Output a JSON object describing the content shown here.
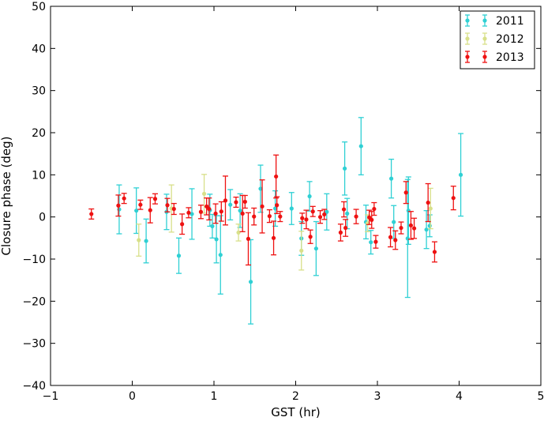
{
  "chart_data": {
    "type": "scatter",
    "xlabel": "GST (hr)",
    "ylabel": "Closure phase (deg)",
    "xlim": [
      -1,
      5
    ],
    "ylim": [
      -40,
      50
    ],
    "xticks": [
      "−1",
      "0",
      "1",
      "2",
      "3",
      "4",
      "5"
    ],
    "yticks": [
      "−40",
      "−30",
      "−20",
      "−10",
      "0",
      "10",
      "20",
      "30",
      "40",
      "50"
    ],
    "legend_position": "top-right",
    "error_bars": true,
    "series": [
      {
        "name": "2011",
        "color": "#2fd0d4",
        "points": [
          [
            -0.16,
            1.8,
            5.8
          ],
          [
            0.05,
            1.5,
            5.4
          ],
          [
            0.17,
            -5.7,
            5.2
          ],
          [
            0.42,
            1.2,
            4.2
          ],
          [
            0.57,
            -9.2,
            4.2
          ],
          [
            0.73,
            0.7,
            6.0
          ],
          [
            0.95,
            1.6,
            3.8
          ],
          [
            0.98,
            -2.2,
            2.8
          ],
          [
            1.03,
            -5.3,
            5.6
          ],
          [
            1.08,
            -9.0,
            9.3
          ],
          [
            1.2,
            2.9,
            3.6
          ],
          [
            1.32,
            1.5,
            4.0
          ],
          [
            1.45,
            -15.4,
            10.0
          ],
          [
            1.57,
            6.7,
            5.6
          ],
          [
            1.75,
            2.0,
            4.2
          ],
          [
            1.95,
            2.0,
            3.8
          ],
          [
            2.07,
            -5.1,
            4.0
          ],
          [
            2.17,
            4.9,
            3.5
          ],
          [
            2.25,
            -7.5,
            6.4
          ],
          [
            2.38,
            1.2,
            4.3
          ],
          [
            2.6,
            11.5,
            6.3
          ],
          [
            2.63,
            0.8,
            3.6
          ],
          [
            2.8,
            16.8,
            6.8
          ],
          [
            2.86,
            -1.2,
            4.0
          ],
          [
            2.92,
            -6.0,
            2.8
          ],
          [
            3.17,
            9.1,
            4.6
          ],
          [
            3.2,
            -1.2,
            3.9
          ],
          [
            3.37,
            -5.1,
            14.0
          ],
          [
            3.38,
            1.5,
            8.0
          ],
          [
            3.6,
            -3.0,
            4.5
          ],
          [
            3.64,
            -2.1,
            2.6
          ],
          [
            4.02,
            10.0,
            9.8
          ]
        ]
      },
      {
        "name": "2012",
        "color": "#d8e08a",
        "points": [
          [
            0.08,
            -5.5,
            3.8
          ],
          [
            0.48,
            2.0,
            5.6
          ],
          [
            0.88,
            5.5,
            4.6
          ],
          [
            1.3,
            -3.7,
            2.0
          ],
          [
            2.07,
            -8.0,
            4.6
          ],
          [
            2.88,
            -1.5,
            2.0
          ],
          [
            3.65,
            2.0,
            4.8
          ]
        ]
      },
      {
        "name": "2013",
        "color": "#ee1111",
        "points": [
          [
            -0.5,
            0.7,
            1.2
          ],
          [
            -0.17,
            2.7,
            2.5
          ],
          [
            -0.1,
            4.4,
            1.2
          ],
          [
            0.1,
            2.9,
            1.1
          ],
          [
            0.22,
            1.6,
            3.0
          ],
          [
            0.28,
            4.3,
            1.2
          ],
          [
            0.43,
            2.8,
            1.6
          ],
          [
            0.51,
            1.9,
            1.3
          ],
          [
            0.61,
            -1.7,
            2.4
          ],
          [
            0.69,
            1.0,
            1.2
          ],
          [
            0.84,
            1.2,
            1.6
          ],
          [
            0.91,
            2.5,
            2.0
          ],
          [
            0.94,
            1.9,
            2.6
          ],
          [
            1.02,
            0.8,
            2.3
          ],
          [
            1.09,
            1.3,
            2.3
          ],
          [
            1.14,
            3.9,
            5.8
          ],
          [
            1.27,
            3.5,
            1.2
          ],
          [
            1.35,
            0.8,
            4.3
          ],
          [
            1.38,
            3.6,
            1.5
          ],
          [
            1.42,
            -5.2,
            6.2
          ],
          [
            1.49,
            0.1,
            2.0
          ],
          [
            1.59,
            2.5,
            6.3
          ],
          [
            1.68,
            0.2,
            1.5
          ],
          [
            1.73,
            -5.0,
            4.0
          ],
          [
            1.76,
            9.6,
            5.1
          ],
          [
            1.77,
            2.8,
            2.0
          ],
          [
            1.81,
            0.1,
            1.2
          ],
          [
            2.08,
            -0.3,
            1.2
          ],
          [
            2.13,
            -0.6,
            2.2
          ],
          [
            2.18,
            -4.7,
            1.6
          ],
          [
            2.21,
            1.3,
            1.2
          ],
          [
            2.3,
            0.0,
            1.5
          ],
          [
            2.35,
            0.6,
            1.2
          ],
          [
            2.55,
            -3.7,
            2.0
          ],
          [
            2.59,
            1.8,
            1.8
          ],
          [
            2.61,
            -2.6,
            2.0
          ],
          [
            2.74,
            0.1,
            1.7
          ],
          [
            2.9,
            -0.1,
            1.7
          ],
          [
            2.93,
            -0.7,
            2.0
          ],
          [
            2.96,
            1.9,
            1.5
          ],
          [
            2.98,
            -5.9,
            1.5
          ],
          [
            3.16,
            -4.8,
            2.3
          ],
          [
            3.22,
            -5.5,
            2.2
          ],
          [
            3.29,
            -2.6,
            1.4
          ],
          [
            3.35,
            5.8,
            2.6
          ],
          [
            3.41,
            -2.0,
            3.3
          ],
          [
            3.45,
            -2.7,
            2.4
          ],
          [
            3.62,
            3.4,
            4.5
          ],
          [
            3.7,
            -8.3,
            2.4
          ],
          [
            3.93,
            4.5,
            2.8
          ]
        ]
      }
    ]
  }
}
